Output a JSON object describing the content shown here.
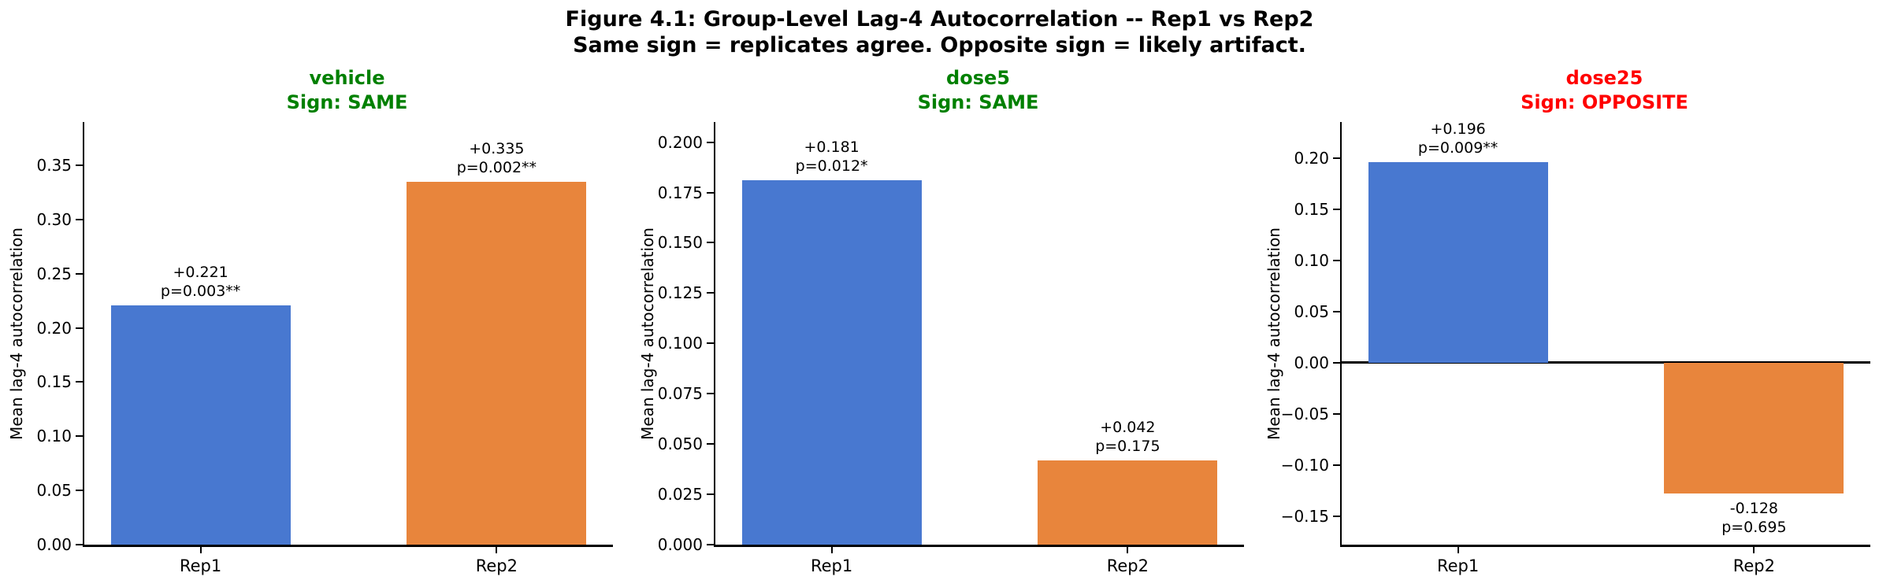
{
  "figure": {
    "title_line1": "Figure 4.1: Group-Level Lag-4 Autocorrelation -- Rep1 vs Rep2",
    "title_line2": "Same sign = replicates agree. Opposite sign = likely artifact.",
    "background_color": "#ffffff",
    "text_color": "#000000"
  },
  "chart_data": [
    {
      "type": "bar",
      "title": "vehicle",
      "subtitle": "Sign: SAME",
      "title_color": "#008000",
      "categories": [
        "Rep1",
        "Rep2"
      ],
      "values": [
        0.221,
        0.335
      ],
      "bar_colors": [
        "#4878D0",
        "#E8853C"
      ],
      "bar_annotations": [
        [
          "+0.221",
          "p=0.003**"
        ],
        [
          "+0.335",
          "p=0.002**"
        ]
      ],
      "ylabel": "Mean lag-4 autocorrelation",
      "ylim": [
        0,
        0.39
      ],
      "yticks": [
        0,
        0.05,
        0.1,
        0.15,
        0.2,
        0.25,
        0.3,
        0.35
      ],
      "ytick_labels": [
        "0.00",
        "0.05",
        "0.10",
        "0.15",
        "0.20",
        "0.25",
        "0.30",
        "0.35"
      ],
      "grid": false,
      "legend": false
    },
    {
      "type": "bar",
      "title": "dose5",
      "subtitle": "Sign: SAME",
      "title_color": "#008000",
      "categories": [
        "Rep1",
        "Rep2"
      ],
      "values": [
        0.181,
        0.042
      ],
      "bar_colors": [
        "#4878D0",
        "#E8853C"
      ],
      "bar_annotations": [
        [
          "+0.181",
          "p=0.012*"
        ],
        [
          "+0.042",
          "p=0.175"
        ]
      ],
      "ylabel": "Mean lag-4 autocorrelation",
      "ylim": [
        0,
        0.21
      ],
      "yticks": [
        0,
        0.025,
        0.05,
        0.075,
        0.1,
        0.125,
        0.15,
        0.175,
        0.2
      ],
      "ytick_labels": [
        "0.000",
        "0.025",
        "0.050",
        "0.075",
        "0.100",
        "0.125",
        "0.150",
        "0.175",
        "0.200"
      ],
      "grid": false,
      "legend": false
    },
    {
      "type": "bar",
      "title": "dose25",
      "subtitle": "Sign: OPPOSITE",
      "title_color": "#FF0000",
      "categories": [
        "Rep1",
        "Rep2"
      ],
      "values": [
        0.196,
        -0.128
      ],
      "bar_colors": [
        "#4878D0",
        "#E8853C"
      ],
      "bar_annotations": [
        [
          "+0.196",
          "p=0.009**"
        ],
        [
          "-0.128",
          "p=0.695"
        ]
      ],
      "ylabel": "Mean lag-4 autocorrelation",
      "ylim": [
        -0.178,
        0.2355
      ],
      "yticks": [
        -0.15,
        -0.1,
        -0.05,
        0,
        0.05,
        0.1,
        0.15,
        0.2
      ],
      "ytick_labels": [
        "−0.15",
        "−0.10",
        "−0.05",
        "0.00",
        "0.05",
        "0.10",
        "0.15",
        "0.20"
      ],
      "grid": false,
      "legend": false,
      "zero_line": true
    }
  ]
}
